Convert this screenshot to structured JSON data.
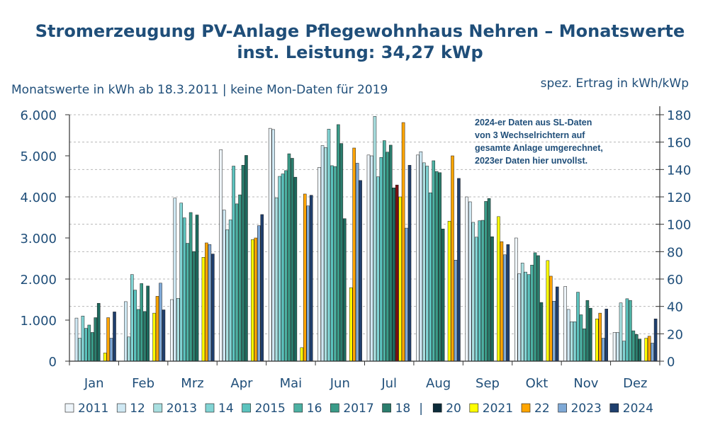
{
  "chart_data": {
    "type": "bar",
    "title": "Stromerzeugung PV-Anlage Pflegewohnhaus Nehren – Monatswerte",
    "subtitle": "inst. Leistung:  34,27 kWp",
    "ylabel": "Monatswerte in kWh ab 18.3.2011 | keine Mon-Daten für 2019",
    "y2label": "spez. Ertrag in kWh/kWp",
    "ylim": [
      0,
      6000
    ],
    "y2lim": [
      0,
      180
    ],
    "yticks": [
      "0",
      "1.000",
      "2.000",
      "3.000",
      "4.000",
      "5.000",
      "6.000"
    ],
    "y2ticks": [
      "0",
      "20",
      "40",
      "60",
      "80",
      "100",
      "120",
      "140",
      "160",
      "180"
    ],
    "categories": [
      "Jan",
      "Feb",
      "Mrz",
      "Apr",
      "Mai",
      "Jun",
      "Jul",
      "Aug",
      "Sep",
      "Okt",
      "Nov",
      "Dez"
    ],
    "legend_labels": [
      "2011",
      "12",
      "2013",
      "14",
      "2015",
      "16",
      "2017",
      "18",
      "|",
      "20",
      "2021",
      "22",
      "2023",
      "2024"
    ],
    "annotation": [
      "2024-er Daten aus SL-Daten",
      "von 3 Wechselrichtern auf",
      "gesamte Anlage umgerechnet,",
      "2023er Daten hier unvollst."
    ],
    "series": [
      {
        "name": "2011",
        "color": "#eef5fa",
        "values": [
          null,
          null,
          1500,
          5150,
          5670,
          4720,
          5020,
          5020,
          4000,
          3000,
          1820,
          700
        ]
      },
      {
        "name": "12",
        "color": "#cfe8f3",
        "values": [
          1050,
          1450,
          3970,
          3680,
          5640,
          5250,
          5000,
          5100,
          3880,
          2130,
          1260,
          700
        ]
      },
      {
        "name": "2013",
        "color": "#a9dfe0",
        "values": [
          560,
          590,
          1530,
          3200,
          3980,
          5200,
          5960,
          4830,
          3380,
          2390,
          960,
          1420
        ]
      },
      {
        "name": "14",
        "color": "#82d4d4",
        "values": [
          1100,
          2110,
          3850,
          3440,
          4500,
          5650,
          4490,
          4750,
          3020,
          2170,
          960,
          490
        ]
      },
      {
        "name": "2015",
        "color": "#5cc3be",
        "values": [
          800,
          1730,
          3490,
          4750,
          4560,
          4760,
          4960,
          4100,
          3420,
          2110,
          1680,
          1520
        ]
      },
      {
        "name": "16",
        "color": "#4db1a3",
        "values": [
          880,
          1260,
          2870,
          3830,
          4640,
          4740,
          5370,
          4880,
          3430,
          2340,
          1130,
          1480
        ]
      },
      {
        "name": "2017",
        "color": "#3a9b88",
        "values": [
          700,
          1890,
          3620,
          4050,
          5050,
          5760,
          5090,
          4620,
          3890,
          2640,
          790,
          740
        ]
      },
      {
        "name": "18",
        "color": "#2b7d6d",
        "values": [
          1060,
          1210,
          2670,
          4770,
          4940,
          5300,
          5260,
          4590,
          3960,
          2570,
          1480,
          650
        ]
      },
      {
        "name": "|",
        "color": "#1d6a5e",
        "values": [
          1410,
          1830,
          3560,
          5010,
          4480,
          3470,
          4220,
          3220,
          3030,
          1430,
          1290,
          540
        ]
      },
      {
        "name": "20",
        "color": "#7a1010",
        "values": [
          null,
          null,
          null,
          null,
          null,
          null,
          4290,
          null,
          null,
          null,
          null,
          null
        ]
      },
      {
        "name": "2021",
        "color": "#ffff00",
        "values": [
          200,
          1170,
          2530,
          2960,
          330,
          1790,
          4000,
          3410,
          3520,
          2450,
          1030,
          560
        ]
      },
      {
        "name": "22",
        "color": "#ffa500",
        "values": [
          1060,
          1580,
          2880,
          3000,
          4070,
          5190,
          5810,
          5000,
          2910,
          2070,
          1170,
          610
        ]
      },
      {
        "name": "2023",
        "color": "#7fa9d6",
        "values": [
          560,
          1900,
          2840,
          3300,
          3780,
          4820,
          3240,
          2460,
          2590,
          1460,
          560,
          440
        ]
      },
      {
        "name": "2024",
        "color": "#1f3f6e",
        "values": [
          1200,
          1250,
          2610,
          3570,
          4040,
          4400,
          4770,
          4450,
          2840,
          1810,
          1270,
          1030
        ]
      }
    ]
  }
}
